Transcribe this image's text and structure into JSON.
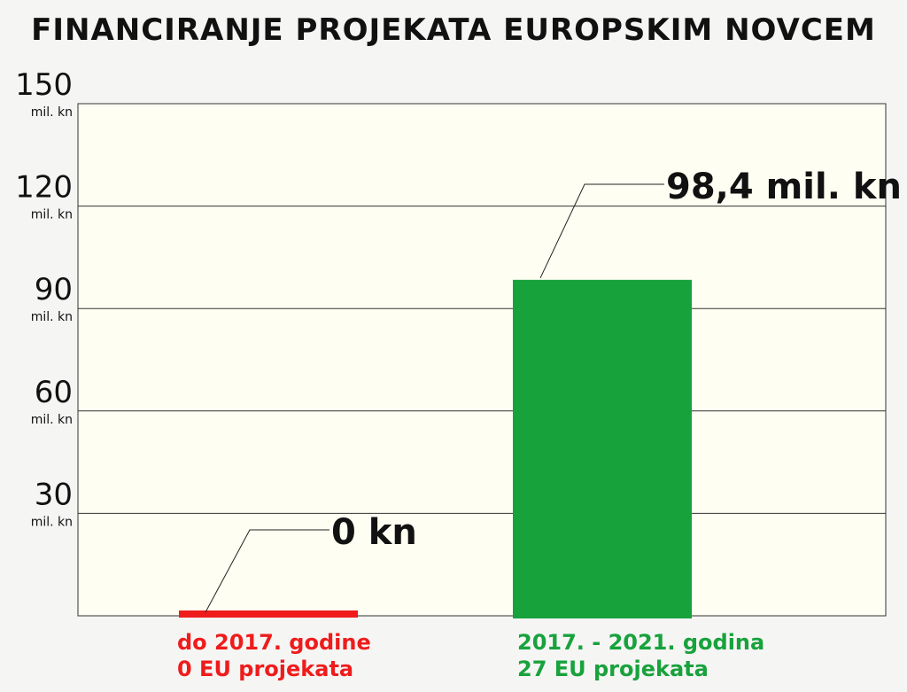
{
  "title": "FINANCIRANJE PROJEKATA EUROPSKIM NOVCEM",
  "colors": {
    "plot_bg": "#fefef2",
    "grid": "#333333",
    "first": "#ee1c1c",
    "second": "#18a23c",
    "text": "#111111"
  },
  "chart_data": {
    "type": "bar",
    "title": "FINANCIRANJE PROJEKATA EUROPSKIM NOVCEM",
    "ylim": [
      0,
      150
    ],
    "y_ticks": [
      {
        "value": 150,
        "label": "150",
        "unit": "mil. kn"
      },
      {
        "value": 120,
        "label": "120",
        "unit": "mil. kn"
      },
      {
        "value": 90,
        "label": "90",
        "unit": "mil. kn"
      },
      {
        "value": 60,
        "label": "60",
        "unit": "mil. kn"
      },
      {
        "value": 30,
        "label": "30",
        "unit": "mil. kn"
      }
    ],
    "grid": true,
    "bars": [
      {
        "category_line1": "do 2017. godine",
        "category_line2": "0 EU projekata",
        "value": 0,
        "value_label": "0 kn",
        "color": "#ee1c1c"
      },
      {
        "category_line1": "2017. - 2021. godina",
        "category_line2": "27 EU projekata",
        "value": 98.4,
        "value_label": "98,4 mil. kn",
        "color": "#18a23c"
      }
    ]
  }
}
